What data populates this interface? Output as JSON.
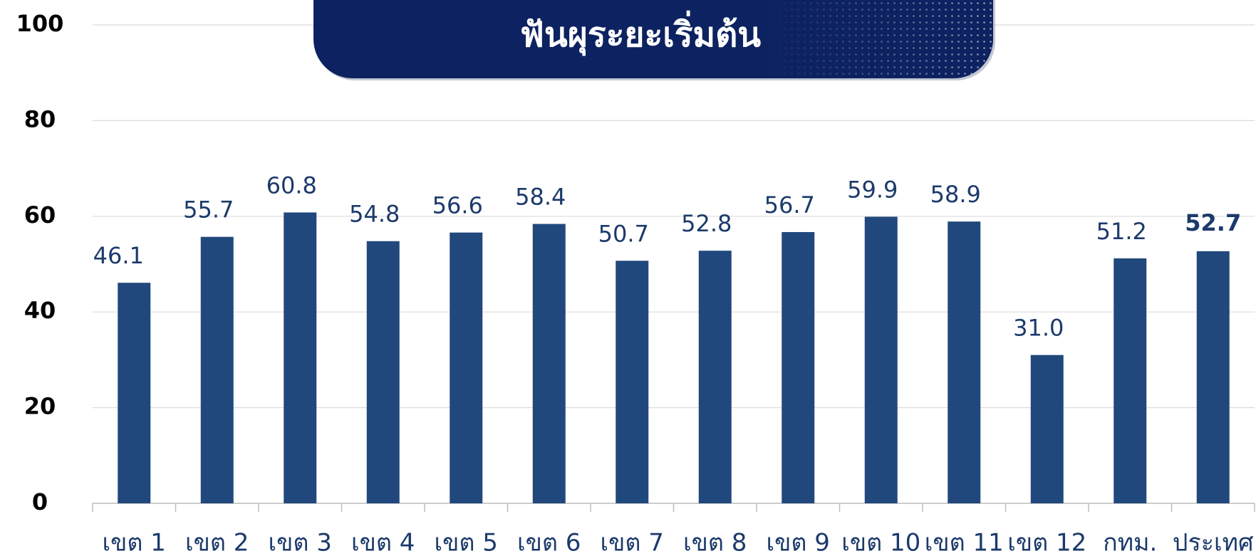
{
  "chart_data": {
    "type": "bar",
    "title": "ฟันผุระยะเริ่มต้น",
    "categories": [
      "เขต 1",
      "เขต 2",
      "เขต 3",
      "เขต 4",
      "เขต 5",
      "เขต 6",
      "เขต 7",
      "เขต 8",
      "เขต 9",
      "เขต 10",
      "เขต 11",
      "เขต 12",
      "กทม.",
      "ประเทศ"
    ],
    "values": [
      46.1,
      55.7,
      60.8,
      54.8,
      56.6,
      58.4,
      50.7,
      52.8,
      56.7,
      59.9,
      58.9,
      31.0,
      51.2,
      52.7
    ],
    "value_labels": [
      "46.1",
      "55.7",
      "60.8",
      "54.8",
      "56.6",
      "58.4",
      "50.7",
      "52.8",
      "56.7",
      "59.9",
      "58.9",
      "31.0",
      "51.2",
      "52.7"
    ],
    "color": "#21487c",
    "ylim": [
      0,
      100
    ],
    "yticks": [
      0,
      20,
      40,
      60,
      80,
      100
    ],
    "grid": true
  }
}
